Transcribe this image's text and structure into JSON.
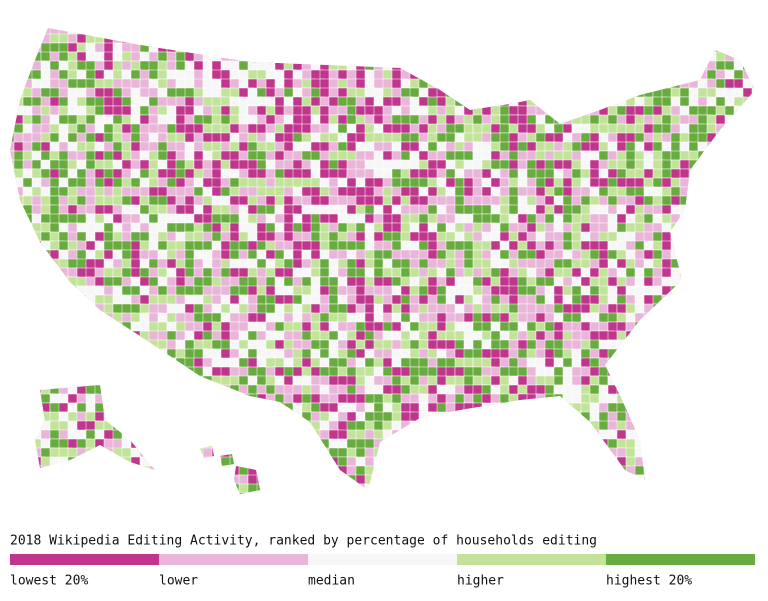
{
  "map": {
    "title": "2018 Wikipedia Editing Activity, ranked by percentage of households editing",
    "legend": [
      {
        "label": "lowest 20%",
        "color": "#c0368c"
      },
      {
        "label": "lower",
        "color": "#e9b5d9"
      },
      {
        "label": "median",
        "color": "#f7f7f7"
      },
      {
        "label": "higher",
        "color": "#c3e39b"
      },
      {
        "label": "highest 20%",
        "color": "#68ab3f"
      }
    ]
  }
}
